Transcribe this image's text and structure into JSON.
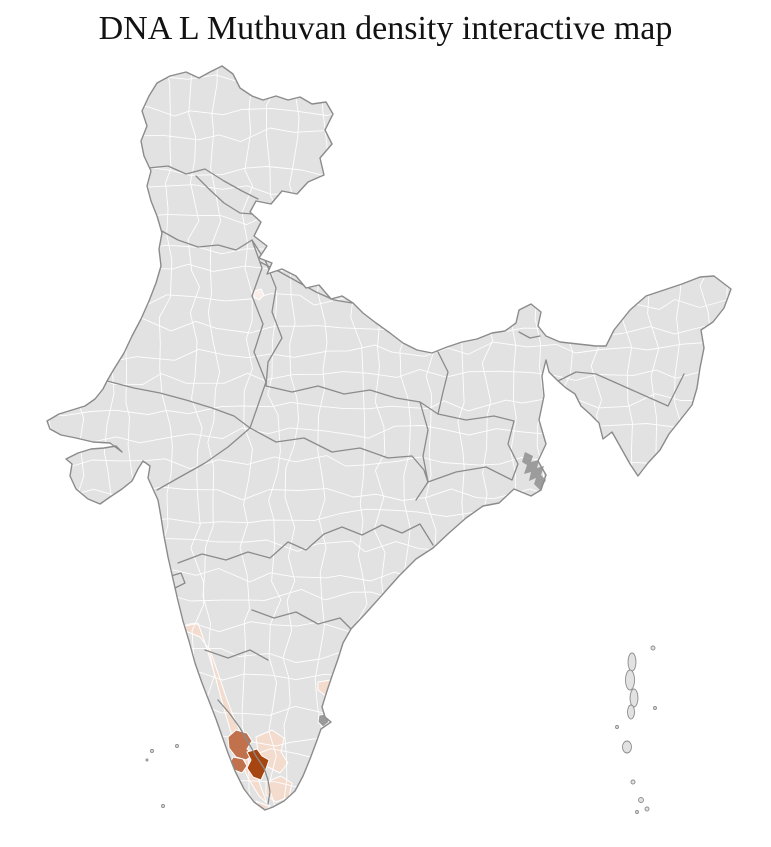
{
  "title": "DNA L Muthuvan density interactive map",
  "map": {
    "colors": {
      "background": "#ffffff",
      "land": "#e2e2e2",
      "state_border": "#8b8b8b",
      "district_border": "#ffffff",
      "dark_district": "#9a9a9a",
      "delta_patch": "#8f8f8f"
    },
    "density_scale": {
      "trace": "#f9efe8",
      "low": "#f3dcce",
      "medium": "#c1714b",
      "high": "#a64510"
    }
  },
  "chart_data": {
    "type": "choropleth",
    "title": "DNA L Muthuvan density interactive map",
    "legend": "none",
    "regions": [
      {
        "id": "west-coast-band",
        "location": "Kerala and coastal Karnataka strip",
        "level": "low"
      },
      {
        "id": "south-interior-1",
        "location": "western Tamil Nadu uplands",
        "level": "low"
      },
      {
        "id": "south-interior-2",
        "location": "southern Tamil Nadu",
        "level": "low"
      },
      {
        "id": "east-coast-patch",
        "location": "Tamil Nadu east coast enclave",
        "level": "low"
      },
      {
        "id": "medium-north",
        "location": "central Kerala, northern district",
        "level": "medium"
      },
      {
        "id": "medium-west",
        "location": "central Kerala, western district",
        "level": "medium"
      },
      {
        "id": "high-core",
        "location": "central Kerala highlands core district",
        "level": "high"
      },
      {
        "id": "capital-trace",
        "location": "national capital district",
        "level": "trace"
      }
    ]
  }
}
